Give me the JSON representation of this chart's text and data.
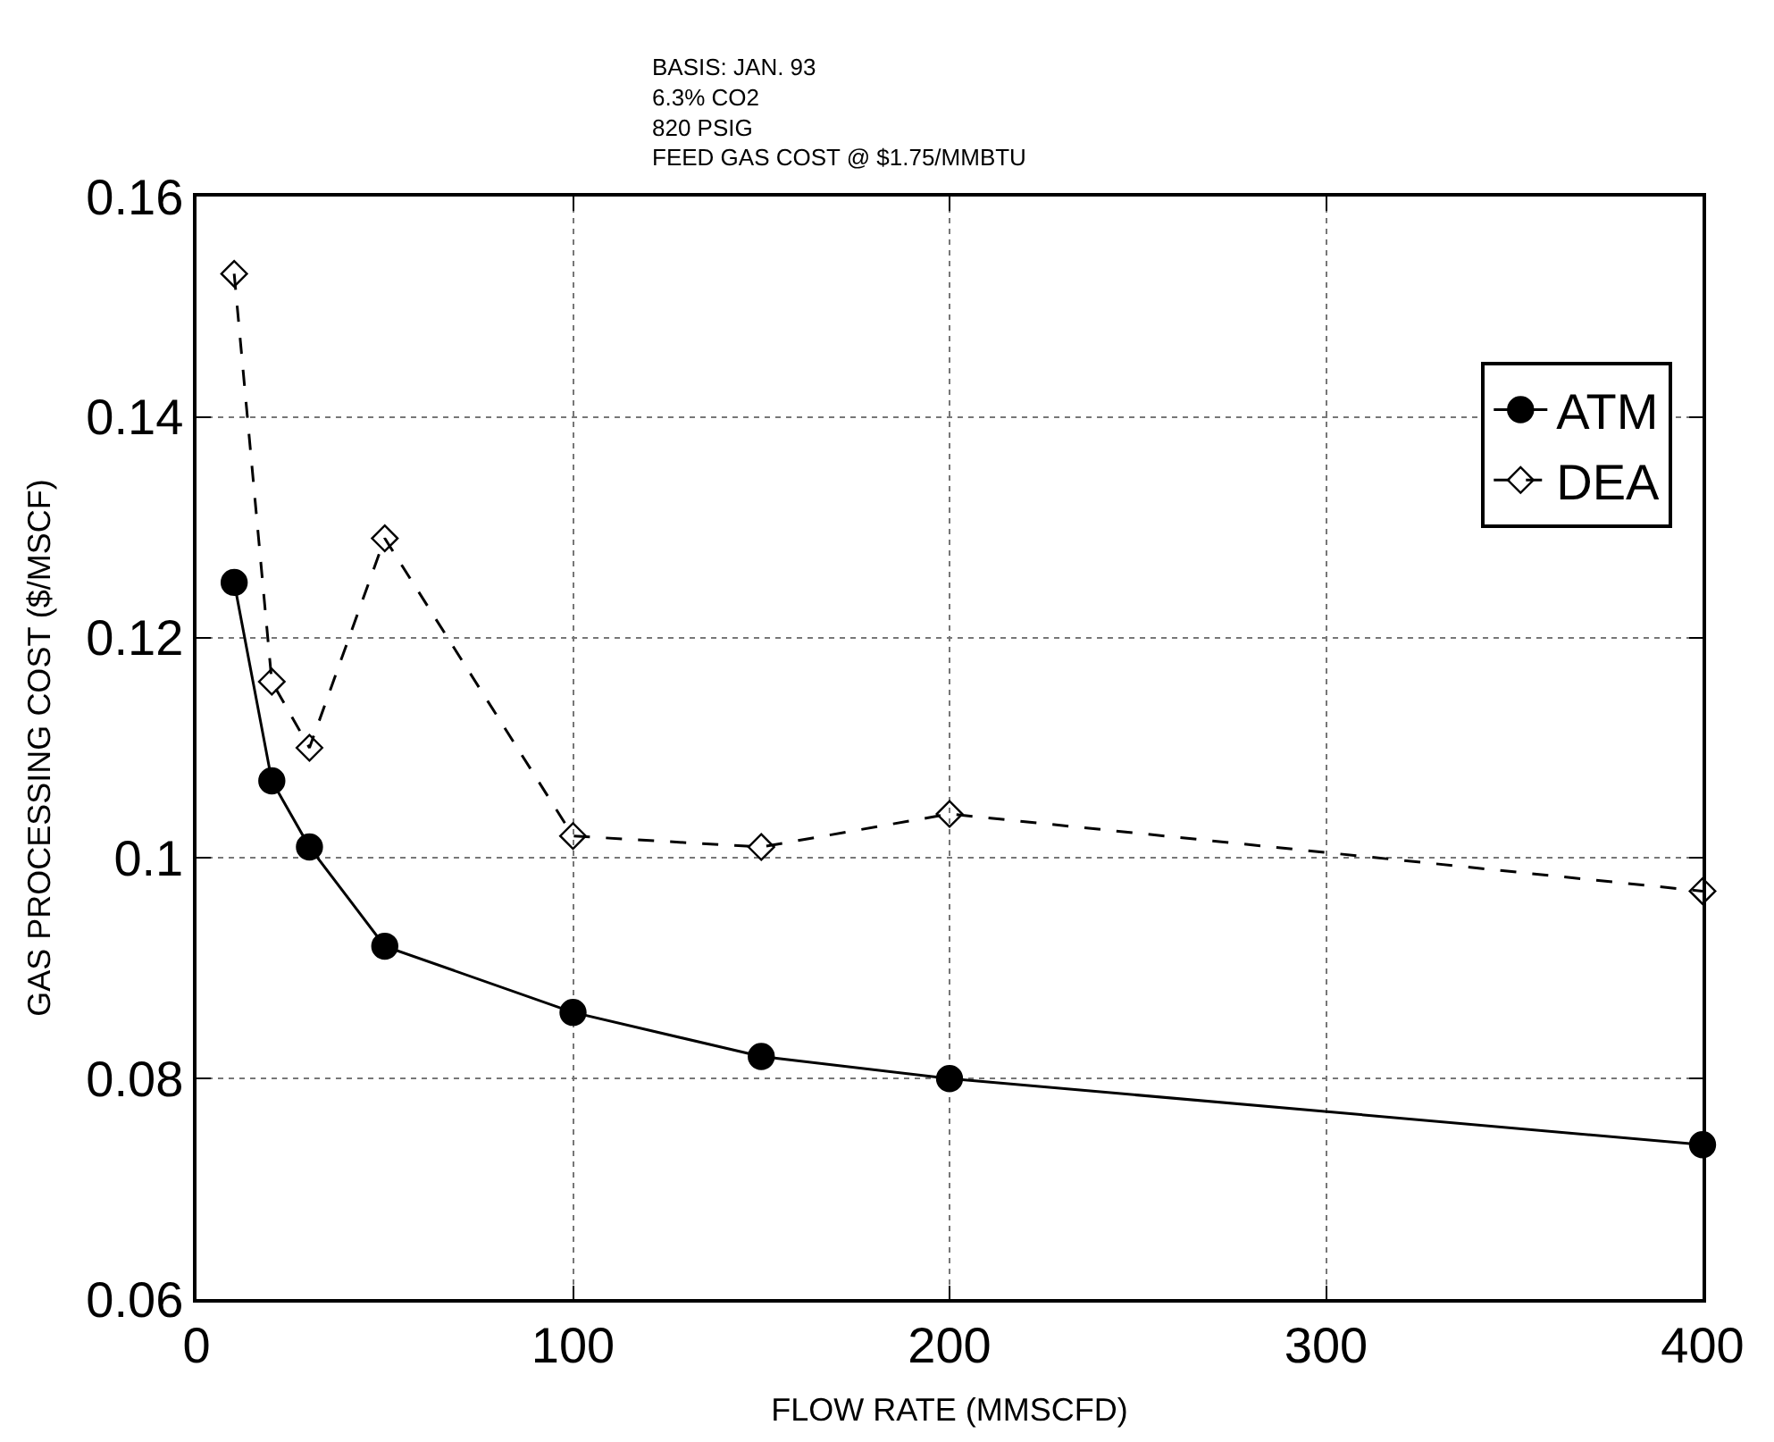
{
  "chart_data": {
    "type": "line",
    "x": [
      10,
      20,
      30,
      50,
      100,
      150,
      200,
      400
    ],
    "series": [
      {
        "name": "ATM",
        "color": "#000000",
        "marker": "circle",
        "line_style": "solid",
        "values": [
          0.125,
          0.107,
          0.101,
          0.092,
          0.086,
          0.082,
          0.08,
          0.074
        ]
      },
      {
        "name": "DEA",
        "color": "#000000",
        "marker": "diamond",
        "line_style": "dashed",
        "values": [
          0.153,
          0.116,
          0.11,
          0.129,
          0.102,
          0.101,
          0.104,
          0.097
        ]
      }
    ],
    "xlabel": "FLOW RATE (MMSCFD)",
    "ylabel": "GAS PROCESSING COST ($/MSCF)",
    "annotations": [
      "BASIS: JAN. 93\n6.3% CO2\n820 PSIG\nFEED GAS COST @ $1.75/MMBTU"
    ],
    "xlim": [
      0,
      400
    ],
    "xticks": [
      0,
      100,
      200,
      300,
      400
    ],
    "ylim": [
      0.06,
      0.16
    ],
    "yticks": [
      0.06,
      0.08,
      {
        "value": 0.1,
        "label": "0.1"
      },
      0.12,
      0.14,
      0.16
    ],
    "grid": true,
    "legend": "top right"
  }
}
